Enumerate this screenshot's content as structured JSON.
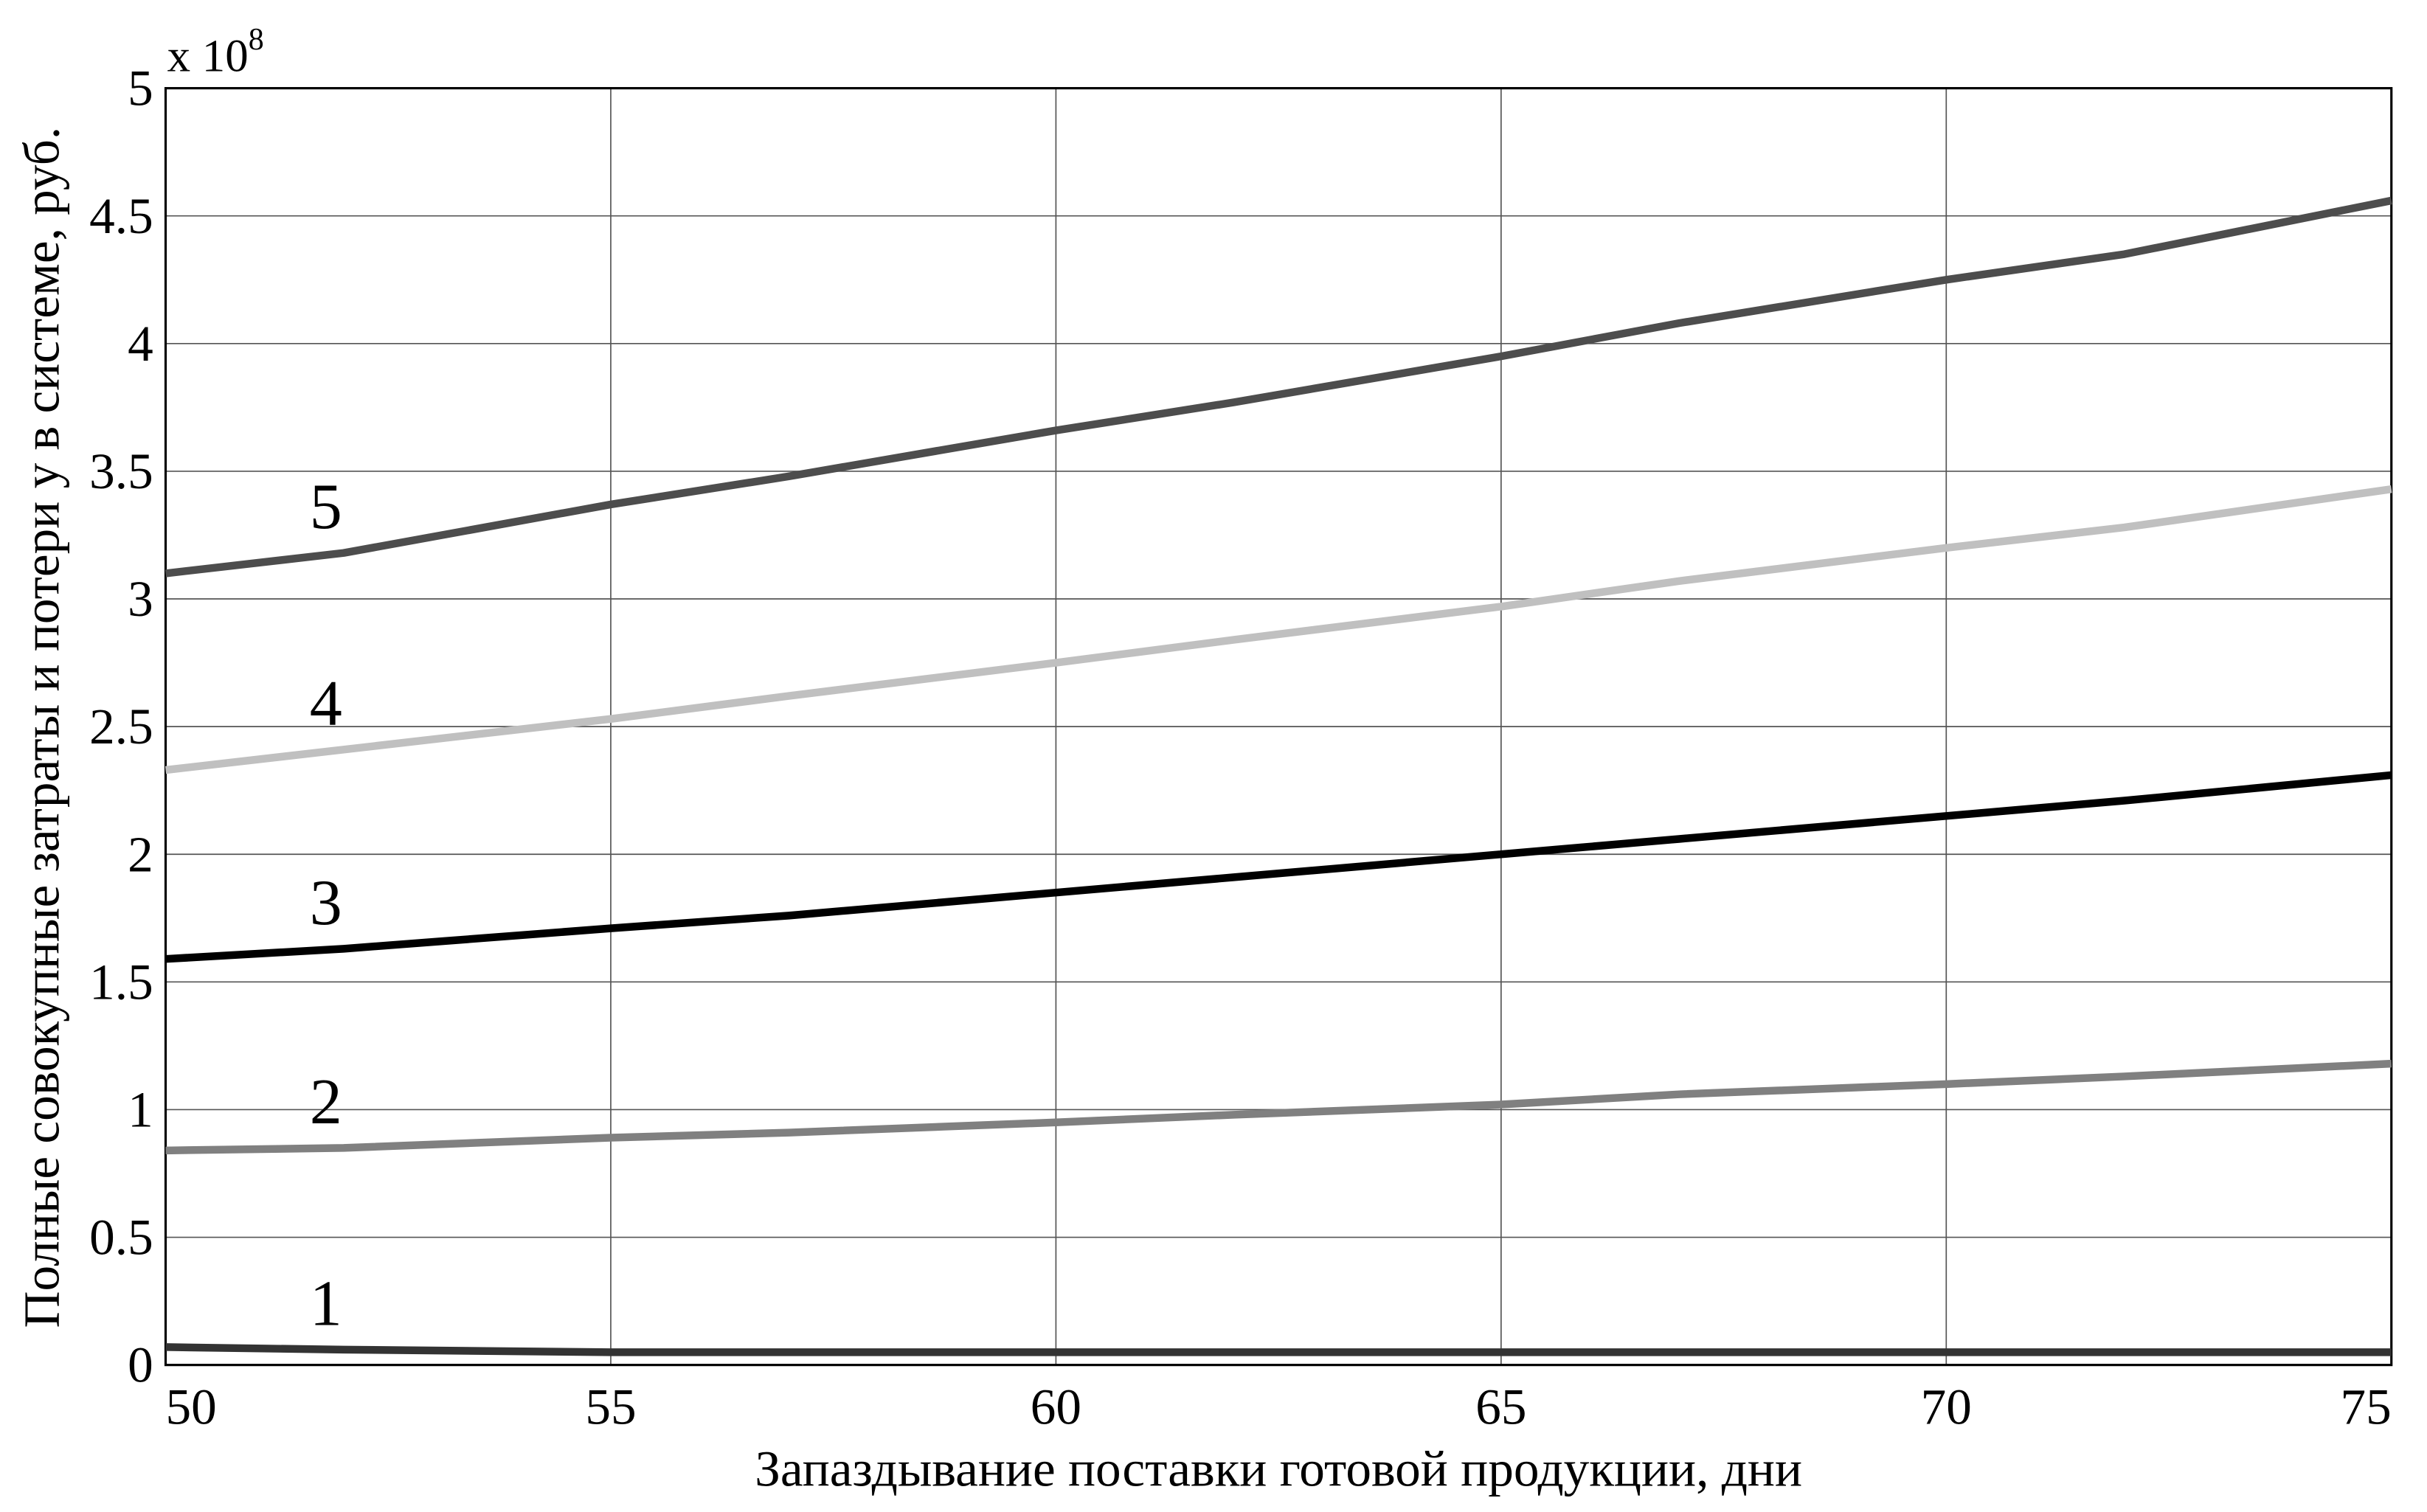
{
  "chart_data": {
    "type": "line",
    "x_label": "Запаздывание поставки готовой продукции, дни",
    "y_label": "Полные совокупные затраты и потери у в системе, руб.",
    "y_multiplier": {
      "base": "x 10",
      "exponent": "8"
    },
    "x": [
      50,
      52,
      55,
      57,
      60,
      62,
      65,
      67,
      70,
      72,
      75
    ],
    "series": [
      {
        "name": "1",
        "color": "#333333",
        "values": [
          0.07,
          0.06,
          0.05,
          0.05,
          0.05,
          0.05,
          0.05,
          0.05,
          0.05,
          0.05,
          0.05
        ]
      },
      {
        "name": "2",
        "color": "#808080",
        "values": [
          0.84,
          0.85,
          0.89,
          0.91,
          0.95,
          0.98,
          1.02,
          1.06,
          1.1,
          1.13,
          1.18
        ]
      },
      {
        "name": "3",
        "color": "#000000",
        "values": [
          1.59,
          1.63,
          1.71,
          1.76,
          1.85,
          1.91,
          2.0,
          2.06,
          2.15,
          2.21,
          2.31
        ]
      },
      {
        "name": "4",
        "color": "#c0c0c0",
        "values": [
          2.33,
          2.41,
          2.53,
          2.62,
          2.75,
          2.84,
          2.97,
          3.07,
          3.2,
          3.28,
          3.43
        ]
      },
      {
        "name": "5",
        "color": "#4d4d4d",
        "values": [
          3.1,
          3.18,
          3.37,
          3.48,
          3.66,
          3.77,
          3.95,
          4.08,
          4.25,
          4.35,
          4.56
        ]
      }
    ],
    "xlim": [
      50,
      75
    ],
    "xticks": [
      50,
      55,
      60,
      65,
      70,
      75
    ],
    "ylim": [
      0,
      5
    ],
    "yticks": [
      0,
      0.5,
      1,
      1.5,
      2,
      2.5,
      3,
      3.5,
      4,
      4.5,
      5
    ],
    "grid": true
  }
}
